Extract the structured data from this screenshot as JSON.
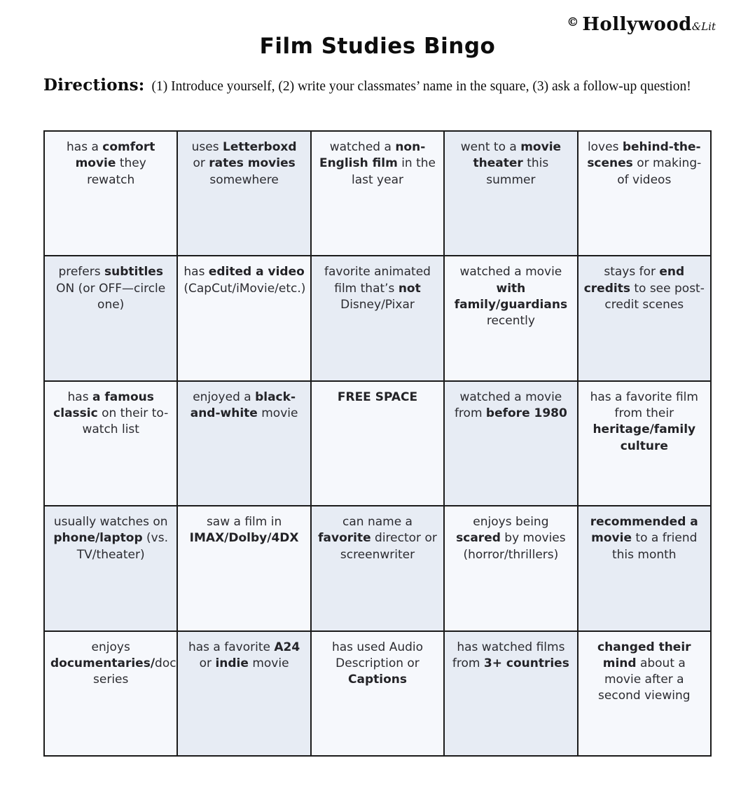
{
  "page": {
    "logo": {
      "copyright": "©",
      "brand": "Hollywood",
      "suffix": "&Lit"
    },
    "title": "Film Studies Bingo",
    "directions_label": "Directions:",
    "directions_text": "(1) Introduce yourself, (2) write your classmates’ name in the square, (3) ask a follow-up question!"
  },
  "grid": {
    "rows": 5,
    "cols": 5,
    "colors": {
      "cell_light": "#f6f8fc",
      "cell_shaded": "#e7ecf4",
      "border": "#1b1b1b",
      "text": "#2b2b30"
    },
    "cells": [
      "has a **comfort movie** they rewatch",
      "uses **Letterboxd** or **rates movies** somewhere",
      "watched a **non-English film** in the last year",
      "went to a **movie theater** this summer",
      "loves **behind-the-scenes** or making-of videos",
      "prefers **subtitles** ON (or OFF—circle one)",
      "has **edited a video** (CapCut/iMovie/etc.)",
      "favorite animated film that’s **not** Disney/Pixar",
      "watched a movie **with family/guardians** recently",
      "stays for **end credits** to see post-credit scenes",
      "has **a famous classic** on their to-watch list",
      "enjoyed a **black-and-white** movie",
      "**FREE SPACE**",
      "watched a movie from **before 1980**",
      "has a favorite film from their **heritage/family culture**",
      "usually watches on **phone/laptop** (vs. TV/theater)",
      "saw a film in **IMAX/Dolby/4DX**",
      "can name a **favorite** director or screenwriter",
      "enjoys being **scared** by movies (horror/thrillers)",
      "**recommended a movie** to a friend this month",
      "enjoys **documentaries/**docu-series",
      "has a favorite **A24** or **indie** movie",
      "has used Audio Description or **Captions**",
      "has watched films from **3+ countries**",
      "**changed their mind** about a movie after a second viewing"
    ]
  }
}
